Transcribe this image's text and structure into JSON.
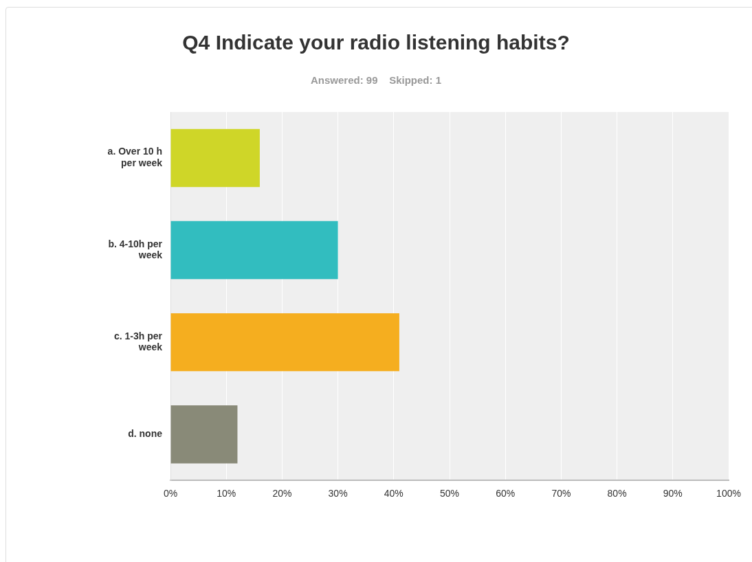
{
  "chart_data": {
    "type": "bar",
    "orientation": "horizontal",
    "title": "Q4 Indicate your radio listening habits?",
    "subtitle": "Answered: 99    Skipped: 1",
    "categories": [
      "a. Over 10 h per week",
      "b. 4-10h per week",
      "c. 1-3h per week",
      "d. none"
    ],
    "values": [
      16,
      30,
      41,
      12
    ],
    "colors": [
      "#cfd628",
      "#32bdbf",
      "#f5ae1f",
      "#898a78"
    ],
    "xlim": [
      0,
      100
    ],
    "xticks": [
      {
        "value": 0,
        "label": "0%"
      },
      {
        "value": 10,
        "label": "10%"
      },
      {
        "value": 20,
        "label": "20%"
      },
      {
        "value": 30,
        "label": "30%"
      },
      {
        "value": 40,
        "label": "40%"
      },
      {
        "value": 50,
        "label": "50%"
      },
      {
        "value": 60,
        "label": "60%"
      },
      {
        "value": 70,
        "label": "70%"
      },
      {
        "value": 80,
        "label": "80%"
      },
      {
        "value": 90,
        "label": "90%"
      },
      {
        "value": 100,
        "label": "100%"
      }
    ],
    "grid": "x",
    "legend": false
  }
}
